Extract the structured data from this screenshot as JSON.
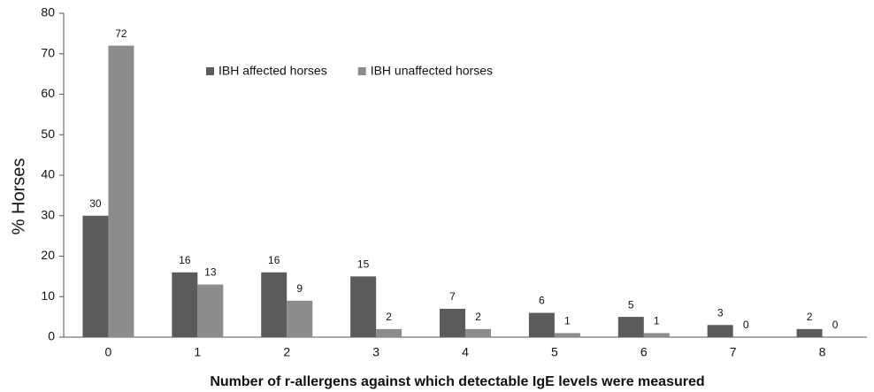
{
  "chart_data": {
    "type": "bar",
    "x_label": "Number of r-allergens against which detectable IgE levels were measured",
    "y_label": "% Horses",
    "categories": [
      "0",
      "1",
      "2",
      "3",
      "4",
      "5",
      "6",
      "7",
      "8"
    ],
    "series": [
      {
        "name": "IBH affected horses",
        "color": "#5b5b5b",
        "values": [
          30,
          16,
          16,
          15,
          7,
          6,
          5,
          3,
          2
        ]
      },
      {
        "name": "IBH unaffected horses",
        "color": "#8c8c8c",
        "values": [
          72,
          13,
          9,
          2,
          2,
          1,
          1,
          0,
          0
        ]
      }
    ],
    "ylim": [
      0,
      80
    ],
    "yticks": [
      0,
      10,
      20,
      30,
      40,
      50,
      60,
      70,
      80
    ],
    "grid": false,
    "legend": "top"
  }
}
